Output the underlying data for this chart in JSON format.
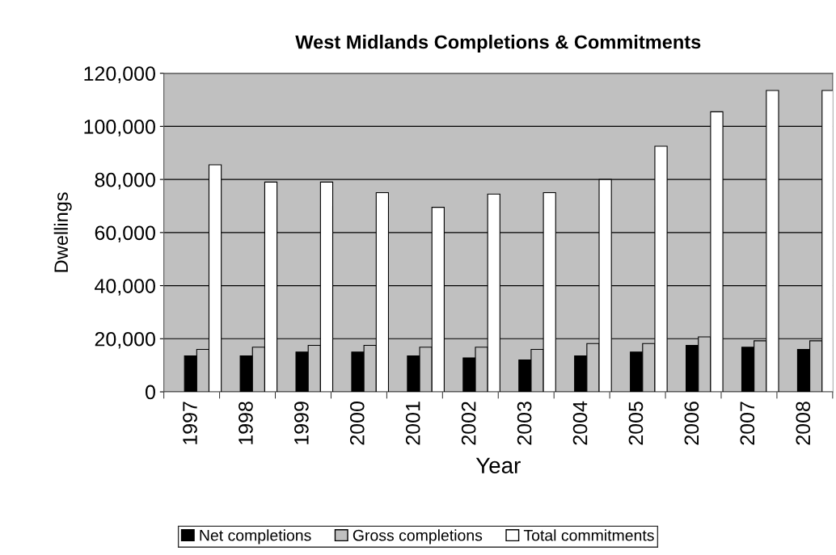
{
  "chart_data": {
    "type": "bar",
    "title": "West Midlands Completions & Commitments",
    "xlabel": "Year",
    "ylabel": "Dwellings",
    "categories": [
      "1997",
      "1998",
      "1999",
      "2000",
      "2001",
      "2002",
      "2003",
      "2004",
      "2005",
      "2006",
      "2007",
      "2008"
    ],
    "series": [
      {
        "name": "Net completions",
        "color": "#000000",
        "values": [
          13500,
          13500,
          15000,
          15000,
          13500,
          12800,
          12000,
          13500,
          15000,
          17500,
          16800,
          16000
        ]
      },
      {
        "name": "Gross completions",
        "color": "#c0c0c0",
        "values": [
          16000,
          16800,
          17500,
          17500,
          16800,
          16800,
          16000,
          18200,
          18200,
          20700,
          19200,
          19200
        ]
      },
      {
        "name": "Total commitments",
        "color": "#ffffff",
        "values": [
          85500,
          79000,
          79000,
          75000,
          69500,
          74500,
          75000,
          80000,
          92500,
          105500,
          113500,
          113500
        ]
      }
    ],
    "ylim": [
      0,
      120000
    ],
    "yticks": [
      {
        "value": 0,
        "label": "0"
      },
      {
        "value": 20000,
        "label": "20,000"
      },
      {
        "value": 40000,
        "label": "40,000"
      },
      {
        "value": 60000,
        "label": "60,000"
      },
      {
        "value": 80000,
        "label": "80,000"
      },
      {
        "value": 100000,
        "label": "100,000"
      },
      {
        "value": 120000,
        "label": "120,000"
      }
    ],
    "grid": "y",
    "legend": "bottom"
  }
}
